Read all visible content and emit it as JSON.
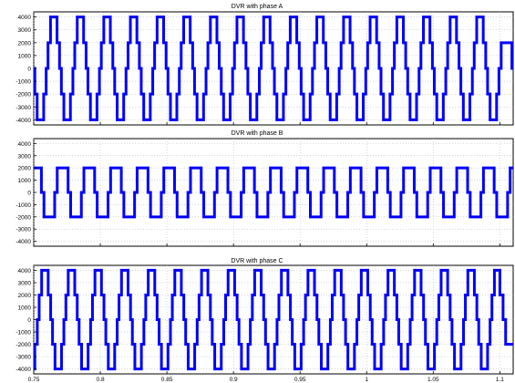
{
  "chart_data": [
    {
      "type": "line",
      "title": "DVR with phase A",
      "xlabel": "",
      "ylabel": "",
      "xlim": [
        0.75,
        1.11
      ],
      "ylim": [
        -4400,
        4400
      ],
      "yticks": [
        4000,
        3000,
        2000,
        1000,
        0,
        -1000,
        -2000,
        -3000,
        -4000
      ],
      "ytick_labels": [
        "4000",
        "3000",
        "2000",
        "1000",
        "0",
        "-1000",
        "-2000",
        "-3000",
        "-4000"
      ],
      "grid": true,
      "color": "#0000ff",
      "waveform": "stepped square wave (multilevel inverter output)",
      "fundamental_frequency_hz": 50,
      "phase_deg": 0,
      "levels": [
        -4000,
        -2000,
        0,
        2000,
        4000
      ],
      "x_end_full_amplitude": 1.1,
      "after_end_levels": [
        -2000,
        0,
        2000
      ],
      "series": [
        {
          "values_description": "",
          "amplitude": 4000
        }
      ]
    },
    {
      "type": "line",
      "title": "DVR with phase B",
      "xlabel": "",
      "ylabel": "",
      "xlim": [
        0.75,
        1.11
      ],
      "ylim": [
        -4400,
        4400
      ],
      "yticks": [
        4000,
        3000,
        2000,
        1000,
        0,
        -1000,
        -2000,
        -3000,
        -4000
      ],
      "ytick_labels": [
        "4000",
        "3000",
        "2000",
        "1000",
        "0",
        "-1000",
        "-2000",
        "-3000",
        "-4000"
      ],
      "grid": true,
      "color": "#0000ff",
      "waveform": "stepped square wave (multilevel inverter output)",
      "fundamental_frequency_hz": 50,
      "phase_deg": -120,
      "levels": [
        -2000,
        0,
        2000
      ],
      "series": [
        {
          "values_description": "",
          "amplitude": 2000
        }
      ]
    },
    {
      "type": "line",
      "title": "DVR with phase C",
      "xlabel": "",
      "ylabel": "",
      "xlim": [
        0.75,
        1.11
      ],
      "ylim": [
        -4400,
        4400
      ],
      "yticks": [
        4000,
        3000,
        2000,
        1000,
        0,
        -1000,
        -2000,
        -3000,
        -4000
      ],
      "ytick_labels": [
        "4000",
        "3000",
        "2000",
        "1000",
        "0",
        "-1000",
        "-2000",
        "-3000",
        "-4000"
      ],
      "xticks": [
        0.75,
        0.8,
        0.85,
        0.9,
        0.95,
        1,
        1.05,
        1.1
      ],
      "xtick_labels": [
        "0.75",
        "0.8",
        "0.85",
        "0.9",
        "0.95",
        "1",
        "1.05",
        "1.1"
      ],
      "grid": true,
      "color": "#0000ff",
      "waveform": "stepped square wave (multilevel inverter output)",
      "fundamental_frequency_hz": 50,
      "phase_deg": 120,
      "levels": [
        -4000,
        -2000,
        0,
        2000,
        4000
      ],
      "x_end_full_amplitude": 1.1,
      "after_end_levels": [
        -2000,
        0,
        2000
      ],
      "series": [
        {
          "values_description": "",
          "amplitude": 4000
        }
      ]
    }
  ]
}
